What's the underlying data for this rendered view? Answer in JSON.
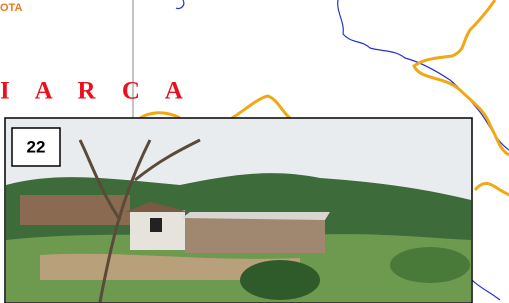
{
  "map": {
    "labels": [
      "OTA",
      "I A R C A"
    ]
  },
  "photo": {
    "number": "22"
  }
}
